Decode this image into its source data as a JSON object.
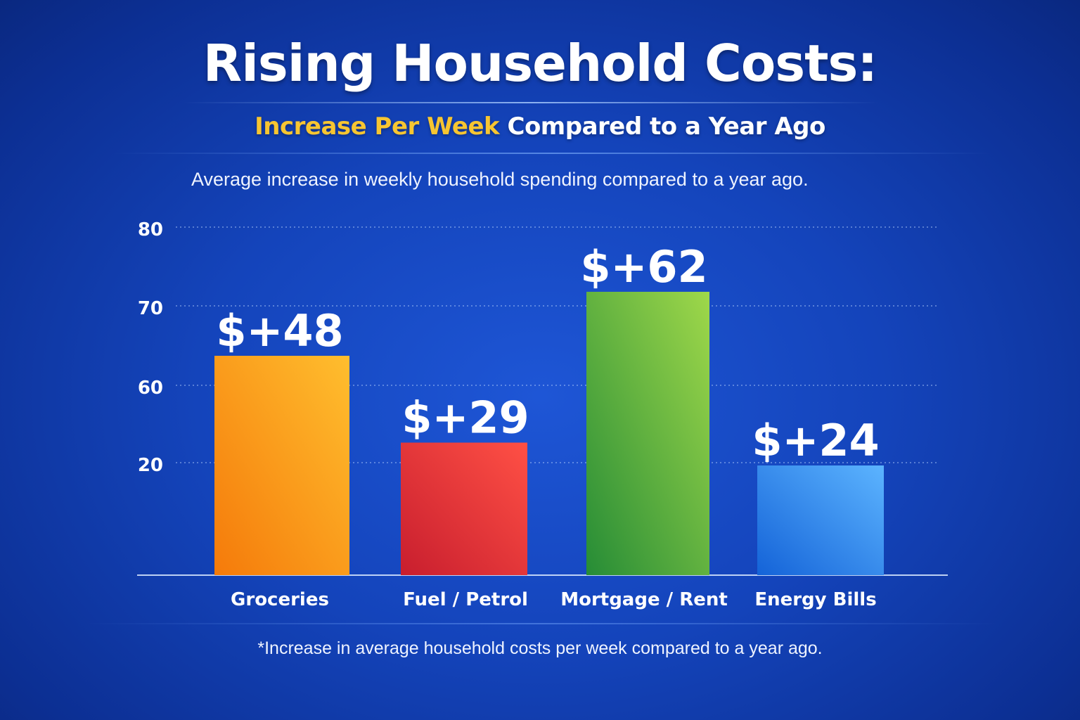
{
  "header": {
    "title": "Rising Household Costs:",
    "subtitle_highlight": "Increase Per Week",
    "subtitle_rest": "Compared to a Year Ago",
    "description": "Average increase in weekly household spending compared to a year ago."
  },
  "footnote": "*Increase in average household costs per week compared to a year ago.",
  "colors": {
    "background": "#1444bb",
    "subtitle_highlight": "#f7c531",
    "text": "#ffffff"
  },
  "chart_data": {
    "type": "bar",
    "categories": [
      "Groceries",
      "Fuel / Petrol",
      "Mortgage / Rent",
      "Energy Bills"
    ],
    "values": [
      48,
      29,
      62,
      24
    ],
    "data_labels": [
      "$+48",
      "$+29",
      "$+62",
      "$+24"
    ],
    "bar_colors": [
      [
        "#ffbe2e",
        "#f57a0a"
      ],
      [
        "#ff5045",
        "#c81e2e"
      ],
      [
        "#9fd84a",
        "#268c36"
      ],
      [
        "#5cb4ff",
        "#1463d8"
      ]
    ],
    "y_ticks": [
      "80",
      "70",
      "60",
      "20"
    ],
    "y_tick_values": [
      80,
      70,
      60,
      20
    ],
    "grid": true,
    "title": "Rising Household Costs:",
    "xlabel": "",
    "ylabel": ""
  }
}
